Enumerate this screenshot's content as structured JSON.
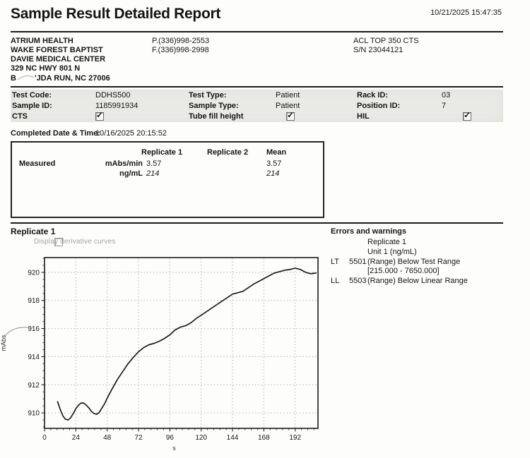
{
  "header": {
    "title": "Sample Result Detailed Report",
    "datetime": "10/21/2025 15:47:35"
  },
  "facility": {
    "address_lines": [
      "ATRIUM HEALTH",
      "WAKE FOREST BAPTIST",
      "DAVIE MEDICAL CENTER",
      "329 NC HWY 801 N"
    ],
    "address_last_prefix": "B",
    "address_last_suffix": "'JDA RUN, NC 27006",
    "phone": "P.(336)998-2553",
    "fax": "F.(336)998-2998",
    "instrument": "ACL TOP 350 CTS",
    "serial": "S/N 23044121"
  },
  "info": {
    "rows": [
      {
        "c1_label": "Test Code:",
        "c1_value": "DDHS500",
        "c2_label": "Test Type:",
        "c2_value": "Patient",
        "c3_label": "Rack ID:",
        "c3_value": "03"
      },
      {
        "c1_label": "Sample ID:",
        "c1_value": "1185991934",
        "c2_label": "Sample Type:",
        "c2_value": "Patient",
        "c3_label": "Position ID:",
        "c3_value": "7"
      },
      {
        "c1_label": "CTS",
        "c1_checked": true,
        "c2_label": "Tube fill height",
        "c2_checked": true,
        "c3_label": "HIL",
        "c3_checked": true
      }
    ]
  },
  "completed": {
    "label": "Completed Date & Time:",
    "value": "10/16/2025 20:15:52"
  },
  "measured": {
    "col_headers": [
      "Replicate 1",
      "Replicate 2",
      "Mean"
    ],
    "row_label": "Measured",
    "rows": [
      {
        "unit": "mAbs/min",
        "rep1": "3.57",
        "rep2": "",
        "mean": "3.57"
      },
      {
        "unit": "ng/mL",
        "rep1": "214",
        "rep2": "",
        "mean": "214"
      }
    ]
  },
  "replicate_section": {
    "title": "Replicate 1",
    "derivative_label": "Display derivative curves",
    "derivative_checked": false
  },
  "errors": {
    "title": "Errors and warnings",
    "replicate": "Replicate 1",
    "unit": "Unit 1 (ng/mL)",
    "items": [
      {
        "code_type": "LT",
        "code": "5501",
        "text": "(Range) Below Test Range",
        "text2": "[215.000 - 7650.000]"
      },
      {
        "code_type": "LL",
        "code": "5503",
        "text": "(Range) Below Linear Range",
        "text2": ""
      }
    ]
  },
  "chart_data": {
    "type": "line",
    "title": "Replicate 1",
    "xlabel": "s",
    "ylabel": "mAbs",
    "xlim": [
      0,
      209.5
    ],
    "ylim": [
      908.9,
      921.05
    ],
    "x_ticks": [
      0,
      24,
      48,
      72,
      96,
      120,
      144,
      168,
      192
    ],
    "y_ticks": [
      910,
      912,
      914,
      916,
      918,
      920
    ],
    "grid": "dashed",
    "legend": "none",
    "series": [
      {
        "name": "Replicate 1",
        "x": [
          10,
          12,
          14,
          16,
          18,
          20,
          22,
          24,
          26,
          28,
          30,
          32,
          34,
          36,
          38,
          40,
          42,
          44,
          46,
          48,
          52,
          56,
          60,
          64,
          68,
          72,
          76,
          80,
          84,
          88,
          92,
          96,
          100,
          104,
          108,
          112,
          116,
          120,
          124,
          128,
          132,
          136,
          140,
          144,
          148,
          152,
          156,
          160,
          164,
          168,
          172,
          176,
          180,
          184,
          188,
          192,
          196,
          200,
          204,
          208
        ],
        "y": [
          910.8,
          910.25,
          909.8,
          909.55,
          909.5,
          909.65,
          909.95,
          910.3,
          910.55,
          910.7,
          910.7,
          910.55,
          910.35,
          910.1,
          909.95,
          909.9,
          910.05,
          910.35,
          910.65,
          911.05,
          911.75,
          912.4,
          912.95,
          913.5,
          913.95,
          914.35,
          914.65,
          914.85,
          914.95,
          915.1,
          915.3,
          915.55,
          915.9,
          916.1,
          916.2,
          916.4,
          916.7,
          916.95,
          917.2,
          917.45,
          917.7,
          917.95,
          918.2,
          918.45,
          918.55,
          918.65,
          918.9,
          919.15,
          919.35,
          919.55,
          919.75,
          919.95,
          920.05,
          920.15,
          920.2,
          920.3,
          920.2,
          920.0,
          919.9,
          919.95
        ]
      }
    ]
  }
}
